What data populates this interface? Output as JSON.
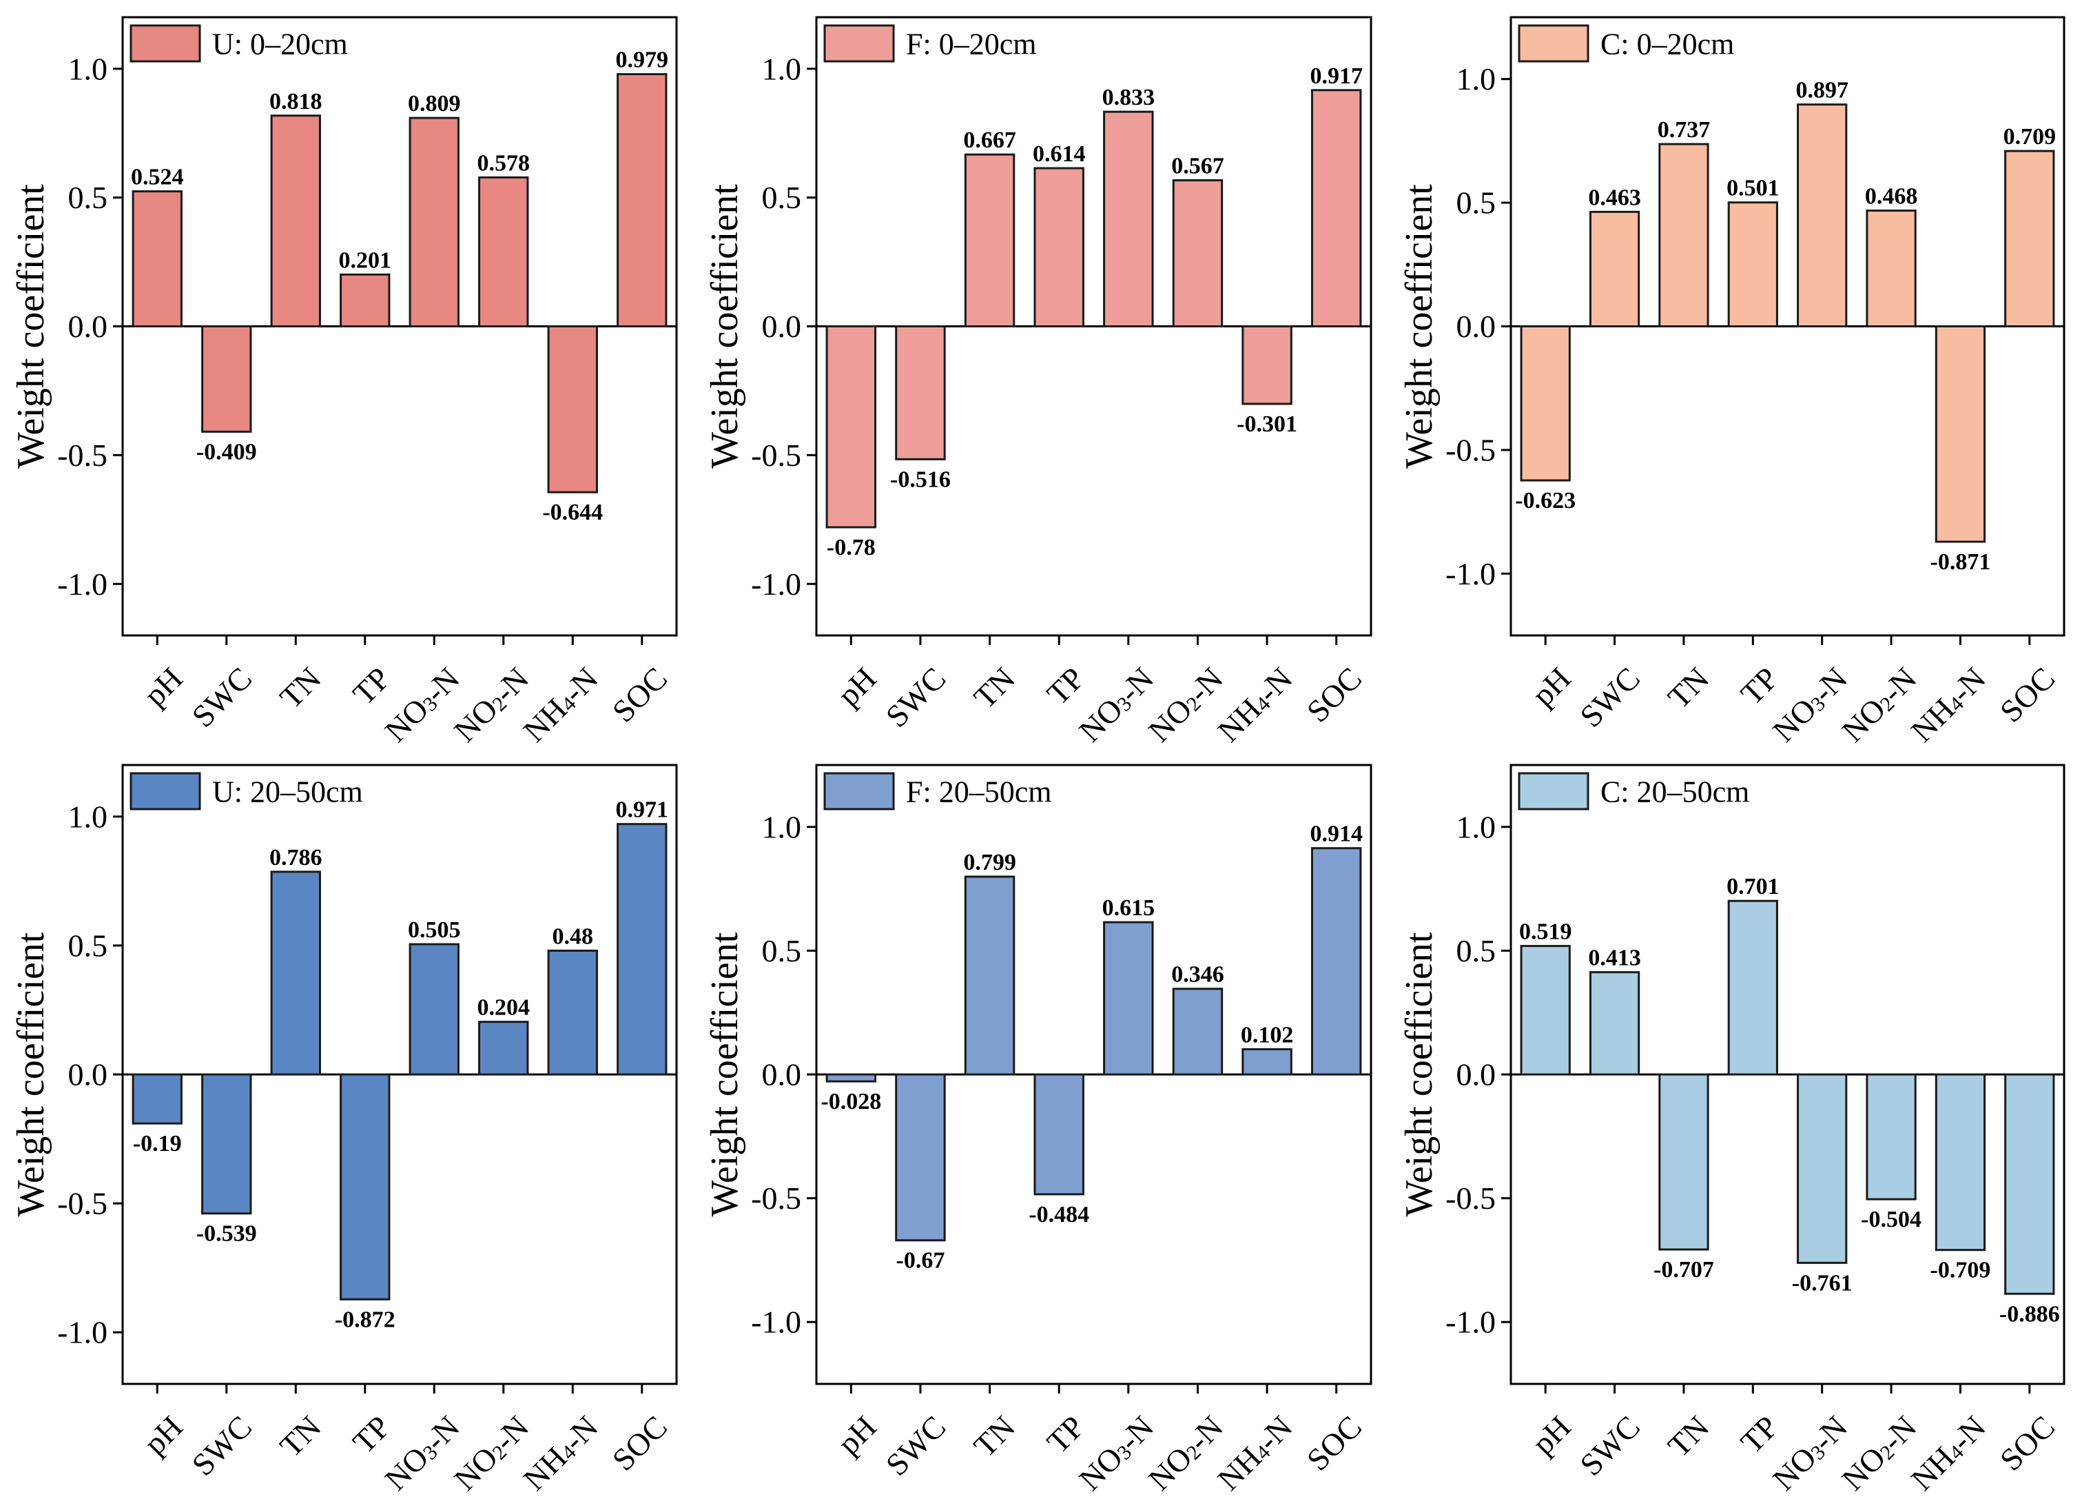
{
  "chart_data": [
    {
      "type": "bar",
      "legend": "U: 0–20cm",
      "color": "#E88882",
      "ylabel": "Weight coefficient",
      "ylim": [
        -1.2,
        1.2
      ],
      "yticks": [
        {
          "value": 1.0,
          "label": "1.0"
        },
        {
          "value": 0.5,
          "label": "0.5"
        },
        {
          "value": 0.0,
          "label": "0.0"
        },
        {
          "value": -0.5,
          "label": "-0.5"
        },
        {
          "value": -1.0,
          "label": "-1.0"
        }
      ],
      "categories": [
        {
          "base": "pH",
          "sub": "",
          "tail": ""
        },
        {
          "base": "SWC",
          "sub": "",
          "tail": ""
        },
        {
          "base": "TN",
          "sub": "",
          "tail": ""
        },
        {
          "base": "TP",
          "sub": "",
          "tail": ""
        },
        {
          "base": "NO",
          "sub": "3",
          "tail": "-N"
        },
        {
          "base": "NO",
          "sub": "2",
          "tail": "-N"
        },
        {
          "base": "NH",
          "sub": "4",
          "tail": "-N"
        },
        {
          "base": "SOC",
          "sub": "",
          "tail": ""
        }
      ],
      "values": [
        0.524,
        -0.409,
        0.818,
        0.201,
        0.809,
        0.578,
        -0.644,
        0.979
      ],
      "labels": [
        "0.524",
        "-0.409",
        "0.818",
        "0.201",
        "0.809",
        "0.578",
        "-0.644",
        "0.979"
      ]
    },
    {
      "type": "bar",
      "legend": "F: 0–20cm",
      "color": "#EE9E98",
      "ylabel": "Weight coefficient",
      "ylim": [
        -1.2,
        1.2
      ],
      "yticks": [
        {
          "value": 1.0,
          "label": "1.0"
        },
        {
          "value": 0.5,
          "label": "0.5"
        },
        {
          "value": 0.0,
          "label": "0.0"
        },
        {
          "value": -0.5,
          "label": "-0.5"
        },
        {
          "value": -1.0,
          "label": "-1.0"
        }
      ],
      "categories": [
        {
          "base": "pH",
          "sub": "",
          "tail": ""
        },
        {
          "base": "SWC",
          "sub": "",
          "tail": ""
        },
        {
          "base": "TN",
          "sub": "",
          "tail": ""
        },
        {
          "base": "TP",
          "sub": "",
          "tail": ""
        },
        {
          "base": "NO",
          "sub": "3",
          "tail": "-N"
        },
        {
          "base": "NO",
          "sub": "2",
          "tail": "-N"
        },
        {
          "base": "NH",
          "sub": "4",
          "tail": "-N"
        },
        {
          "base": "SOC",
          "sub": "",
          "tail": ""
        }
      ],
      "values": [
        -0.78,
        -0.516,
        0.667,
        0.614,
        0.833,
        0.567,
        -0.301,
        0.917
      ],
      "labels": [
        "-0.78",
        "-0.516",
        "0.667",
        "0.614",
        "0.833",
        "0.567",
        "-0.301",
        "0.917"
      ]
    },
    {
      "type": "bar",
      "legend": "C: 0–20cm",
      "color": "#F8BCA0",
      "ylabel": "Weight coefficient",
      "ylim": [
        -1.25,
        1.25
      ],
      "yticks": [
        {
          "value": 1.0,
          "label": "1.0"
        },
        {
          "value": 0.5,
          "label": "0.5"
        },
        {
          "value": 0.0,
          "label": "0.0"
        },
        {
          "value": -0.5,
          "label": "-0.5"
        },
        {
          "value": -1.0,
          "label": "-1.0"
        }
      ],
      "categories": [
        {
          "base": "pH",
          "sub": "",
          "tail": ""
        },
        {
          "base": "SWC",
          "sub": "",
          "tail": ""
        },
        {
          "base": "TN",
          "sub": "",
          "tail": ""
        },
        {
          "base": "TP",
          "sub": "",
          "tail": ""
        },
        {
          "base": "NO",
          "sub": "3",
          "tail": "-N"
        },
        {
          "base": "NO",
          "sub": "2",
          "tail": "-N"
        },
        {
          "base": "NH",
          "sub": "4",
          "tail": "-N"
        },
        {
          "base": "SOC",
          "sub": "",
          "tail": ""
        }
      ],
      "values": [
        -0.623,
        0.463,
        0.737,
        0.501,
        0.897,
        0.468,
        -0.871,
        0.709
      ],
      "labels": [
        "-0.623",
        "0.463",
        "0.737",
        "0.501",
        "0.897",
        "0.468",
        "-0.871",
        "0.709"
      ]
    },
    {
      "type": "bar",
      "legend": "U: 20–50cm",
      "color": "#5A86C3",
      "ylabel": "Weight coefficient",
      "ylim": [
        -1.2,
        1.2
      ],
      "yticks": [
        {
          "value": 1.0,
          "label": "1.0"
        },
        {
          "value": 0.5,
          "label": "0.5"
        },
        {
          "value": 0.0,
          "label": "0.0"
        },
        {
          "value": -0.5,
          "label": "-0.5"
        },
        {
          "value": -1.0,
          "label": "-1.0"
        }
      ],
      "categories": [
        {
          "base": "pH",
          "sub": "",
          "tail": ""
        },
        {
          "base": "SWC",
          "sub": "",
          "tail": ""
        },
        {
          "base": "TN",
          "sub": "",
          "tail": ""
        },
        {
          "base": "TP",
          "sub": "",
          "tail": ""
        },
        {
          "base": "NO",
          "sub": "3",
          "tail": "-N"
        },
        {
          "base": "NO",
          "sub": "2",
          "tail": "-N"
        },
        {
          "base": "NH",
          "sub": "4",
          "tail": "-N"
        },
        {
          "base": "SOC",
          "sub": "",
          "tail": ""
        }
      ],
      "values": [
        -0.19,
        -0.539,
        0.786,
        -0.872,
        0.505,
        0.204,
        0.48,
        0.971
      ],
      "labels": [
        "-0.19",
        "-0.539",
        "0.786",
        "-0.872",
        "0.505",
        "0.204",
        "0.48",
        "0.971"
      ]
    },
    {
      "type": "bar",
      "legend": "F: 20–50cm",
      "color": "#7E9FCF",
      "ylabel": "Weight coefficient",
      "ylim": [
        -1.25,
        1.25
      ],
      "yticks": [
        {
          "value": 1.0,
          "label": "1.0"
        },
        {
          "value": 0.5,
          "label": "0.5"
        },
        {
          "value": 0.0,
          "label": "0.0"
        },
        {
          "value": -0.5,
          "label": "-0.5"
        },
        {
          "value": -1.0,
          "label": "-1.0"
        }
      ],
      "categories": [
        {
          "base": "pH",
          "sub": "",
          "tail": ""
        },
        {
          "base": "SWC",
          "sub": "",
          "tail": ""
        },
        {
          "base": "TN",
          "sub": "",
          "tail": ""
        },
        {
          "base": "TP",
          "sub": "",
          "tail": ""
        },
        {
          "base": "NO",
          "sub": "3",
          "tail": "-N"
        },
        {
          "base": "NO",
          "sub": "2",
          "tail": "-N"
        },
        {
          "base": "NH",
          "sub": "4",
          "tail": "-N"
        },
        {
          "base": "SOC",
          "sub": "",
          "tail": ""
        }
      ],
      "values": [
        -0.028,
        -0.67,
        0.799,
        -0.484,
        0.615,
        0.346,
        0.102,
        0.914
      ],
      "labels": [
        "-0.028",
        "-0.67",
        "0.799",
        "-0.484",
        "0.615",
        "0.346",
        "0.102",
        "0.914"
      ]
    },
    {
      "type": "bar",
      "legend": "C: 20–50cm",
      "color": "#A9CDE3",
      "ylabel": "Weight coefficient",
      "ylim": [
        -1.25,
        1.25
      ],
      "yticks": [
        {
          "value": 1.0,
          "label": "1.0"
        },
        {
          "value": 0.5,
          "label": "0.5"
        },
        {
          "value": 0.0,
          "label": "0.0"
        },
        {
          "value": -0.5,
          "label": "-0.5"
        },
        {
          "value": -1.0,
          "label": "-1.0"
        }
      ],
      "categories": [
        {
          "base": "pH",
          "sub": "",
          "tail": ""
        },
        {
          "base": "SWC",
          "sub": "",
          "tail": ""
        },
        {
          "base": "TN",
          "sub": "",
          "tail": ""
        },
        {
          "base": "TP",
          "sub": "",
          "tail": ""
        },
        {
          "base": "NO",
          "sub": "3",
          "tail": "-N"
        },
        {
          "base": "NO",
          "sub": "2",
          "tail": "-N"
        },
        {
          "base": "NH",
          "sub": "4",
          "tail": "-N"
        },
        {
          "base": "SOC",
          "sub": "",
          "tail": ""
        }
      ],
      "values": [
        0.519,
        0.413,
        -0.707,
        0.701,
        -0.761,
        -0.504,
        -0.709,
        -0.886
      ],
      "labels": [
        "0.519",
        "0.413",
        "-0.707",
        "0.701",
        "-0.761",
        "-0.504",
        "-0.709",
        "-0.886"
      ]
    }
  ]
}
